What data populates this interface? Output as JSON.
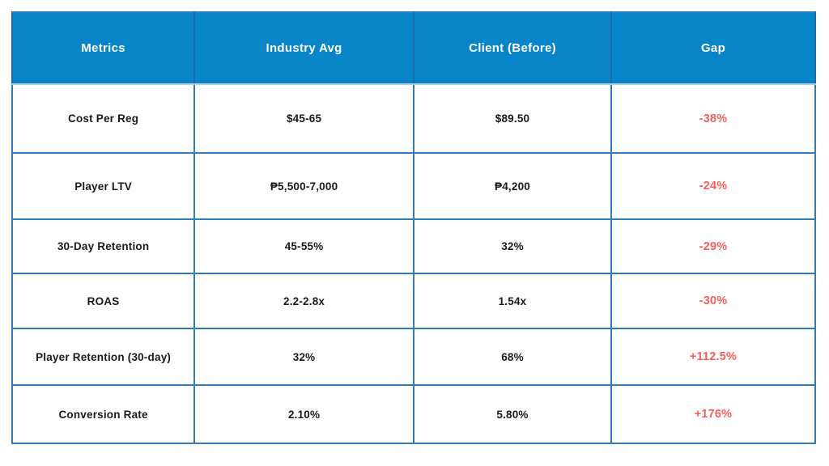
{
  "colors": {
    "header_bg": "#0884C9",
    "border": "#2E7BBB",
    "header_divider": "#1C6BAD",
    "header_bottom": "#AECBE2",
    "gap_text": "#F75D5D",
    "body_text": "#1A1A1A",
    "header_text": "#FFFFFF",
    "page_bg": "#FFFFFF"
  },
  "table": {
    "headers": [
      "Metrics",
      "Industry Avg",
      "Client (Before)",
      "Gap"
    ],
    "rows": [
      {
        "metric": "Cost Per Reg",
        "industry": "$45-65",
        "client": "$89.50",
        "gap": "-38%"
      },
      {
        "metric": "Player LTV",
        "industry": "₱5,500-7,000",
        "client": "₱4,200",
        "gap": "-24%"
      },
      {
        "metric": "30-Day Retention",
        "industry": "45-55%",
        "client": "32%",
        "gap": "-29%"
      },
      {
        "metric": "ROAS",
        "industry": "2.2-2.8x",
        "client": "1.54x",
        "gap": "-30%"
      },
      {
        "metric": "Player Retention (30-day)",
        "industry": "32%",
        "client": "68%",
        "gap": "+112.5%"
      },
      {
        "metric": "Conversion Rate",
        "industry": "2.10%",
        "client": "5.80%",
        "gap": "+176%"
      }
    ]
  },
  "chart_data": {
    "type": "table",
    "title": "",
    "columns": [
      "Metrics",
      "Industry Avg",
      "Client (Before)",
      "Gap"
    ],
    "rows": [
      [
        "Cost Per Reg",
        "$45-65",
        "$89.50",
        "-38%"
      ],
      [
        "Player LTV",
        "₱5,500-7,000",
        "₱4,200",
        "-24%"
      ],
      [
        "30-Day Retention",
        "45-55%",
        "32%",
        "-29%"
      ],
      [
        "ROAS",
        "2.2-2.8x",
        "1.54x",
        "-30%"
      ],
      [
        "Player Retention (30-day)",
        "32%",
        "68%",
        "+112.5%"
      ],
      [
        "Conversion Rate",
        "2.10%",
        "5.80%",
        "+176%"
      ]
    ],
    "gap_values_numeric_percent": [
      -38,
      -24,
      -29,
      -30,
      112.5,
      176
    ],
    "layout_hints": {
      "header_fill": "#0884C9",
      "gap_column_color": "#F75D5D",
      "grid": "on",
      "text_weight": "bold"
    }
  }
}
